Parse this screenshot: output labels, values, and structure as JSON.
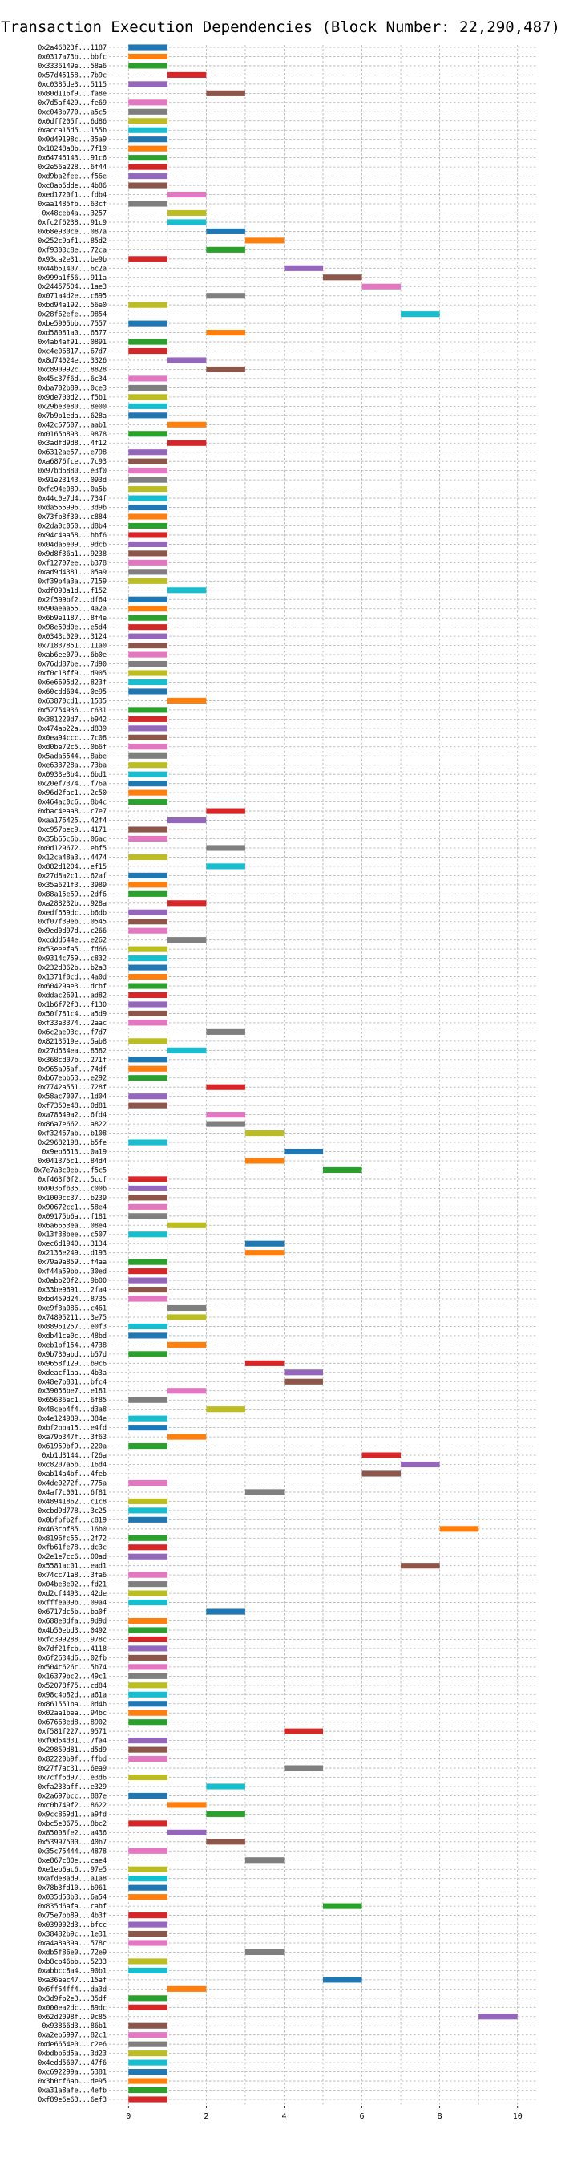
{
  "chart_data": {
    "type": "bar",
    "orientation": "horizontal",
    "title": "Transaction Execution Dependencies (Block Number: 22,290,487)",
    "xlabel": "",
    "ylabel": "",
    "xlim": [
      -0.5,
      10.5
    ],
    "xticks": [
      0,
      2,
      4,
      6,
      8,
      10
    ],
    "grid": true,
    "bar_width_units": 1,
    "bars": [
      [
        "0x2a46823f...1187",
        0,
        "#1f77b4"
      ],
      [
        "0x0317a73b...bbfc",
        0,
        "#ff7f0e"
      ],
      [
        "0x3336149e...58a6",
        0,
        "#2ca02c"
      ],
      [
        "0x57d45158...7b9c",
        1,
        "#d62728"
      ],
      [
        "0xc0385de3...5115",
        0,
        "#9467bd"
      ],
      [
        "0x80d116f9...fa8e",
        2,
        "#8c564b"
      ],
      [
        "0x7d5af429...fe69",
        0,
        "#e377c2"
      ],
      [
        "0xc043b770...a5c5",
        0,
        "#7f7f7f"
      ],
      [
        "0x0dff205f...6d86",
        0,
        "#bcbd22"
      ],
      [
        "0xacca15d5...155b",
        0,
        "#17becf"
      ],
      [
        "0x0d49198c...35a9",
        0,
        "#1f77b4"
      ],
      [
        "0x18248a8b...7f19",
        0,
        "#ff7f0e"
      ],
      [
        "0x64746143...91c6",
        0,
        "#2ca02c"
      ],
      [
        "0x2e56a228...6f44",
        0,
        "#d62728"
      ],
      [
        "0xd9ba2fee...f56e",
        0,
        "#9467bd"
      ],
      [
        "0xc8ab6dde...4b86",
        0,
        "#8c564b"
      ],
      [
        "0xed1720f1...fdb4",
        1,
        "#e377c2"
      ],
      [
        "0xaa1485fb...63cf",
        0,
        "#7f7f7f"
      ],
      [
        "0x48ceb4a...3257",
        1,
        "#bcbd22"
      ],
      [
        "0xfc2f6238...91c9",
        1,
        "#17becf"
      ],
      [
        "0x68e930ce...087a",
        2,
        "#1f77b4"
      ],
      [
        "0x252c9af1...85d2",
        3,
        "#ff7f0e"
      ],
      [
        "0xf9303c8e...72ca",
        2,
        "#2ca02c"
      ],
      [
        "0x93ca2e31...be9b",
        0,
        "#d62728"
      ],
      [
        "0x44b51407...6c2a",
        4,
        "#9467bd"
      ],
      [
        "0x999a1f56...911a",
        5,
        "#8c564b"
      ],
      [
        "0x24457504...1ae3",
        6,
        "#e377c2"
      ],
      [
        "0x071a4d2e...c895",
        2,
        "#7f7f7f"
      ],
      [
        "0xbd94a192...56e0",
        0,
        "#bcbd22"
      ],
      [
        "0x28f62efe...9854",
        7,
        "#17becf"
      ],
      [
        "0xbe5905bb...7557",
        0,
        "#1f77b4"
      ],
      [
        "0xd58081a0...6577",
        2,
        "#ff7f0e"
      ],
      [
        "0x4ab4af91...0891",
        0,
        "#2ca02c"
      ],
      [
        "0xc4e06817...67d7",
        0,
        "#d62728"
      ],
      [
        "0x8d74024e...3326",
        1,
        "#9467bd"
      ],
      [
        "0xc890992c...8828",
        2,
        "#8c564b"
      ],
      [
        "0x45c37f6d...6c34",
        0,
        "#e377c2"
      ],
      [
        "0xba702b89...0ce3",
        0,
        "#7f7f7f"
      ],
      [
        "0x9de700d2...f5b1",
        0,
        "#bcbd22"
      ],
      [
        "0x29be3e80...8e00",
        0,
        "#17becf"
      ],
      [
        "0x7b9b1eda...628a",
        0,
        "#1f77b4"
      ],
      [
        "0x42c57507...aab1",
        1,
        "#ff7f0e"
      ],
      [
        "0x0165b893...9878",
        0,
        "#2ca02c"
      ],
      [
        "0x3adfd9d8...4f12",
        1,
        "#d62728"
      ],
      [
        "0x6312ae57...e798",
        0,
        "#9467bd"
      ],
      [
        "0xa6876fce...7c93",
        0,
        "#8c564b"
      ],
      [
        "0x97bd6880...e3f0",
        0,
        "#e377c2"
      ],
      [
        "0x91e23143...093d",
        0,
        "#7f7f7f"
      ],
      [
        "0xfc94e089...0a5b",
        0,
        "#bcbd22"
      ],
      [
        "0x44c0e7d4...734f",
        0,
        "#17becf"
      ],
      [
        "0xda555996...3d9b",
        0,
        "#1f77b4"
      ],
      [
        "0x73fb8f30...c884",
        0,
        "#ff7f0e"
      ],
      [
        "0x2da0c050...d8b4",
        0,
        "#2ca02c"
      ],
      [
        "0x94c4aa58...bbf6",
        0,
        "#d62728"
      ],
      [
        "0x04da6e09...9dcb",
        0,
        "#9467bd"
      ],
      [
        "0x9d8f36a1...9238",
        0,
        "#8c564b"
      ],
      [
        "0xf12707ee...b378",
        0,
        "#e377c2"
      ],
      [
        "0xad9d4381...05a9",
        0,
        "#7f7f7f"
      ],
      [
        "0xf39b4a3a...7159",
        0,
        "#bcbd22"
      ],
      [
        "0xdf093a1d...f152",
        1,
        "#17becf"
      ],
      [
        "0x2f599bf2...df64",
        0,
        "#1f77b4"
      ],
      [
        "0x90aeaa55...4a2a",
        0,
        "#ff7f0e"
      ],
      [
        "0x6b9e1187...8f4e",
        0,
        "#2ca02c"
      ],
      [
        "0x98e50d0e...e5d4",
        0,
        "#d62728"
      ],
      [
        "0x0343c029...3124",
        0,
        "#9467bd"
      ],
      [
        "0x71837851...11a0",
        0,
        "#8c564b"
      ],
      [
        "0xab6ee079...6b0e",
        0,
        "#e377c2"
      ],
      [
        "0x76dd87be...7d90",
        0,
        "#7f7f7f"
      ],
      [
        "0xf0c18ff9...d905",
        0,
        "#bcbd22"
      ],
      [
        "0x6e6605d2...823f",
        0,
        "#17becf"
      ],
      [
        "0x60cdd604...0e95",
        0,
        "#1f77b4"
      ],
      [
        "0x63870cd1...1535",
        1,
        "#ff7f0e"
      ],
      [
        "0x52754936...c631",
        0,
        "#2ca02c"
      ],
      [
        "0x381220d7...b942",
        0,
        "#d62728"
      ],
      [
        "0x474ab22a...d839",
        0,
        "#9467bd"
      ],
      [
        "0x0ea94ccc...7c08",
        0,
        "#8c564b"
      ],
      [
        "0xd0be72c5...0b6f",
        0,
        "#e377c2"
      ],
      [
        "0x5ada6544...8abe",
        0,
        "#7f7f7f"
      ],
      [
        "0xe633728a...73ba",
        0,
        "#bcbd22"
      ],
      [
        "0x0933e3b4...6bd1",
        0,
        "#17becf"
      ],
      [
        "0x20ef7374...f76a",
        0,
        "#1f77b4"
      ],
      [
        "0x96d2fac1...2c50",
        0,
        "#ff7f0e"
      ],
      [
        "0x464ac0c6...8b4c",
        0,
        "#2ca02c"
      ],
      [
        "0xbac4eaa8...c7e7",
        2,
        "#d62728"
      ],
      [
        "0xaa176425...42f4",
        1,
        "#9467bd"
      ],
      [
        "0xc957bec9...4171",
        0,
        "#8c564b"
      ],
      [
        "0x35b65c6b...06ac",
        0,
        "#e377c2"
      ],
      [
        "0x0d129672...ebf5",
        2,
        "#7f7f7f"
      ],
      [
        "0x12ca48a3...4474",
        0,
        "#bcbd22"
      ],
      [
        "0x882d1204...ef15",
        2,
        "#17becf"
      ],
      [
        "0x27d8a2c1...62af",
        0,
        "#1f77b4"
      ],
      [
        "0x35a621f3...3989",
        0,
        "#ff7f0e"
      ],
      [
        "0x88a15e59...2df6",
        0,
        "#2ca02c"
      ],
      [
        "0xa288232b...928a",
        1,
        "#d62728"
      ],
      [
        "0xedf659dc...b6db",
        0,
        "#9467bd"
      ],
      [
        "0xf07f39eb...0545",
        0,
        "#8c564b"
      ],
      [
        "0x9ed0d97d...c266",
        0,
        "#e377c2"
      ],
      [
        "0xcddd544e...e262",
        1,
        "#7f7f7f"
      ],
      [
        "0x53eeefa5...fd66",
        0,
        "#bcbd22"
      ],
      [
        "0x9314c759...c832",
        0,
        "#17becf"
      ],
      [
        "0x232d362b...b2a3",
        0,
        "#1f77b4"
      ],
      [
        "0x1371f0cd...4a0d",
        0,
        "#ff7f0e"
      ],
      [
        "0x60429ae3...dcbf",
        0,
        "#2ca02c"
      ],
      [
        "0xddac2601...ad82",
        0,
        "#d62728"
      ],
      [
        "0x1b6f72f3...f130",
        0,
        "#9467bd"
      ],
      [
        "0x50f781c4...a5d9",
        0,
        "#8c564b"
      ],
      [
        "0xf33e3374...2aac",
        0,
        "#e377c2"
      ],
      [
        "0x6c2ae93c...f7d7",
        2,
        "#7f7f7f"
      ],
      [
        "0x8213519e...5ab8",
        0,
        "#bcbd22"
      ],
      [
        "0x27d634ea...8582",
        1,
        "#17becf"
      ],
      [
        "0x368cd07b...271f",
        0,
        "#1f77b4"
      ],
      [
        "0x965a95af...74df",
        0,
        "#ff7f0e"
      ],
      [
        "0xb67ebb53...e292",
        0,
        "#2ca02c"
      ],
      [
        "0x7742a551...728f",
        2,
        "#d62728"
      ],
      [
        "0x58ac7007...1d04",
        0,
        "#9467bd"
      ],
      [
        "0xf7350e48...0d81",
        0,
        "#8c564b"
      ],
      [
        "0xa78549a2...6fd4",
        2,
        "#e377c2"
      ],
      [
        "0x86a7e662...a822",
        2,
        "#7f7f7f"
      ],
      [
        "0xf32467ab...b108",
        3,
        "#bcbd22"
      ],
      [
        "0x29682198...b5fe",
        0,
        "#17becf"
      ],
      [
        "0x9eb6513...0a19",
        4,
        "#1f77b4"
      ],
      [
        "0x041375c1...84d4",
        3,
        "#ff7f0e"
      ],
      [
        "0x7e7a3c0eb...f5c5",
        5,
        "#2ca02c"
      ],
      [
        "0xf463f0f2...5ccf",
        0,
        "#d62728"
      ],
      [
        "0x0036fb35...c00b",
        0,
        "#9467bd"
      ],
      [
        "0x1000cc37...b239",
        0,
        "#8c564b"
      ],
      [
        "0x90672cc1...58e4",
        0,
        "#e377c2"
      ],
      [
        "0x09175b6a...f181",
        0,
        "#7f7f7f"
      ],
      [
        "0x6a6653ea...08e4",
        1,
        "#bcbd22"
      ],
      [
        "0x13f38bee...c507",
        0,
        "#17becf"
      ],
      [
        "0xec6d1940...3134",
        3,
        "#1f77b4"
      ],
      [
        "0x2135e249...d193",
        3,
        "#ff7f0e"
      ],
      [
        "0x79a9a859...f4aa",
        0,
        "#2ca02c"
      ],
      [
        "0xf44a59bb...30ed",
        0,
        "#d62728"
      ],
      [
        "0x0abb20f2...9b00",
        0,
        "#9467bd"
      ],
      [
        "0x33be9691...2fa4",
        0,
        "#8c564b"
      ],
      [
        "0xbd459d24...8735",
        0,
        "#e377c2"
      ],
      [
        "0xe9f3a086...c461",
        1,
        "#7f7f7f"
      ],
      [
        "0x74895211...3e75",
        1,
        "#bcbd22"
      ],
      [
        "0x88961257...e0f3",
        0,
        "#17becf"
      ],
      [
        "0xdb41ce0c...48bd",
        0,
        "#1f77b4"
      ],
      [
        "0xeb1bf154...4738",
        1,
        "#ff7f0e"
      ],
      [
        "0x9b730abd...b57d",
        0,
        "#2ca02c"
      ],
      [
        "0x9658f129...b9c6",
        3,
        "#d62728"
      ],
      [
        "0xdeacf1aa...4b3a",
        4,
        "#9467bd"
      ],
      [
        "0x48e7b831...bfc4",
        4,
        "#8c564b"
      ],
      [
        "0x39056be7...e181",
        1,
        "#e377c2"
      ],
      [
        "0x65636ec1...6f85",
        0,
        "#7f7f7f"
      ],
      [
        "0x48ceb4f4...d3a8",
        2,
        "#bcbd22"
      ],
      [
        "0x4e124989...384e",
        0,
        "#17becf"
      ],
      [
        "0xbf2bba15...e4fd",
        0,
        "#1f77b4"
      ],
      [
        "0xa79b347f...3f63",
        1,
        "#ff7f0e"
      ],
      [
        "0x61959bf9...220a",
        0,
        "#2ca02c"
      ],
      [
        "0xb1d3144...f26a",
        6,
        "#d62728"
      ],
      [
        "0xc8207a5b...16d4",
        7,
        "#9467bd"
      ],
      [
        "0xab14a4bf...4feb",
        6,
        "#8c564b"
      ],
      [
        "0x4de0272f...775a",
        0,
        "#e377c2"
      ],
      [
        "0x4af7c001...6f81",
        3,
        "#7f7f7f"
      ],
      [
        "0x48941862...c1c8",
        0,
        "#bcbd22"
      ],
      [
        "0xcbd9d778...3c25",
        0,
        "#17becf"
      ],
      [
        "0x0bfbfb2f...c819",
        0,
        "#1f77b4"
      ],
      [
        "0x463cbf85...16b0",
        8,
        "#ff7f0e"
      ],
      [
        "0x8196fc55...2f72",
        0,
        "#2ca02c"
      ],
      [
        "0xfb61fe78...dc3c",
        0,
        "#d62728"
      ],
      [
        "0x2e1e7cc6...00ad",
        0,
        "#9467bd"
      ],
      [
        "0x5581ac01...ead1",
        7,
        "#8c564b"
      ],
      [
        "0x74cc71a8...3fa6",
        0,
        "#e377c2"
      ],
      [
        "0x04be8e02...fd21",
        0,
        "#7f7f7f"
      ],
      [
        "0xd2cf4493...42de",
        0,
        "#bcbd22"
      ],
      [
        "0xfffea09b...09a4",
        0,
        "#17becf"
      ],
      [
        "0x6717dc5b...ba0f",
        2,
        "#1f77b4"
      ],
      [
        "0x688e8dfa...9d9d",
        0,
        "#ff7f0e"
      ],
      [
        "0x4b50ebd3...0492",
        0,
        "#2ca02c"
      ],
      [
        "0xfc399288...978c",
        0,
        "#d62728"
      ],
      [
        "0x7df21fcb...4118",
        0,
        "#9467bd"
      ],
      [
        "0x6f2634d6...02fb",
        0,
        "#8c564b"
      ],
      [
        "0x504c626c...5b74",
        0,
        "#e377c2"
      ],
      [
        "0x16379bc2...49c1",
        0,
        "#7f7f7f"
      ],
      [
        "0x52078f75...cd84",
        0,
        "#bcbd22"
      ],
      [
        "0x98c4b82d...a61a",
        0,
        "#17becf"
      ],
      [
        "0x861551ba...0d4b",
        0,
        "#1f77b4"
      ],
      [
        "0x02aa1bea...94bc",
        0,
        "#ff7f0e"
      ],
      [
        "0x67663ed8...8902",
        0,
        "#2ca02c"
      ],
      [
        "0xf581f227...9571",
        4,
        "#d62728"
      ],
      [
        "0xf0d54d31...7fa4",
        0,
        "#9467bd"
      ],
      [
        "0x29859d81...d5d9",
        0,
        "#8c564b"
      ],
      [
        "0x82220b9f...ffbd",
        0,
        "#e377c2"
      ],
      [
        "0x27f7ac31...6ea9",
        4,
        "#7f7f7f"
      ],
      [
        "0x7cff6d97...e3d6",
        0,
        "#bcbd22"
      ],
      [
        "0xfa233aff...e329",
        2,
        "#17becf"
      ],
      [
        "0x2a697bcc...887e",
        0,
        "#1f77b4"
      ],
      [
        "0xc0b749f2...8622",
        1,
        "#ff7f0e"
      ],
      [
        "0x9cc869d1...a9fd",
        2,
        "#2ca02c"
      ],
      [
        "0xbc5e3675...8bc2",
        0,
        "#d62728"
      ],
      [
        "0x85008fe2...a436",
        1,
        "#9467bd"
      ],
      [
        "0x53997500...40b7",
        2,
        "#8c564b"
      ],
      [
        "0x35c75444...4878",
        0,
        "#e377c2"
      ],
      [
        "0xe867c80e...cae4",
        3,
        "#7f7f7f"
      ],
      [
        "0xe1eb6ac6...97e5",
        0,
        "#bcbd22"
      ],
      [
        "0xafde8ad9...a1a8",
        0,
        "#17becf"
      ],
      [
        "0x78b3fd10...b961",
        0,
        "#1f77b4"
      ],
      [
        "0x035d53b3...6a54",
        0,
        "#ff7f0e"
      ],
      [
        "0x835d6afa...cabf",
        5,
        "#2ca02c"
      ],
      [
        "0x75e7bb89...4b3f",
        0,
        "#d62728"
      ],
      [
        "0x039002d3...bfcc",
        0,
        "#9467bd"
      ],
      [
        "0x38482b9c...1e31",
        0,
        "#8c564b"
      ],
      [
        "0xa4a8a39a...578c",
        0,
        "#e377c2"
      ],
      [
        "0xdb5f86e0...72e9",
        3,
        "#7f7f7f"
      ],
      [
        "0xb8cb46bb...5233",
        0,
        "#bcbd22"
      ],
      [
        "0xabbcc8a4...90b1",
        0,
        "#17becf"
      ],
      [
        "0xa36eac47...15af",
        5,
        "#1f77b4"
      ],
      [
        "0x6ff54ff4...da3d",
        1,
        "#ff7f0e"
      ],
      [
        "0x3d9fb2e3...35df",
        0,
        "#2ca02c"
      ],
      [
        "0x000ea2dc...89dc",
        0,
        "#d62728"
      ],
      [
        "0x62d2098f...9c85",
        9,
        "#9467bd"
      ],
      [
        "0x93866d3...86b1",
        0,
        "#8c564b"
      ],
      [
        "0xa2eb6997...82c1",
        0,
        "#e377c2"
      ],
      [
        "0xde6654e0...c2e6",
        0,
        "#7f7f7f"
      ],
      [
        "0xbdbb6d5a...3d23",
        0,
        "#bcbd22"
      ],
      [
        "0x4edd5607...47f6",
        0,
        "#17becf"
      ],
      [
        "0xc692299a...5381",
        0,
        "#1f77b4"
      ],
      [
        "0x3b0cf6ab...de95",
        0,
        "#ff7f0e"
      ],
      [
        "0xa31a8afe...4efb",
        0,
        "#2ca02c"
      ],
      [
        "0xf89e6e63...6ef3",
        0,
        "#d62728"
      ]
    ]
  }
}
